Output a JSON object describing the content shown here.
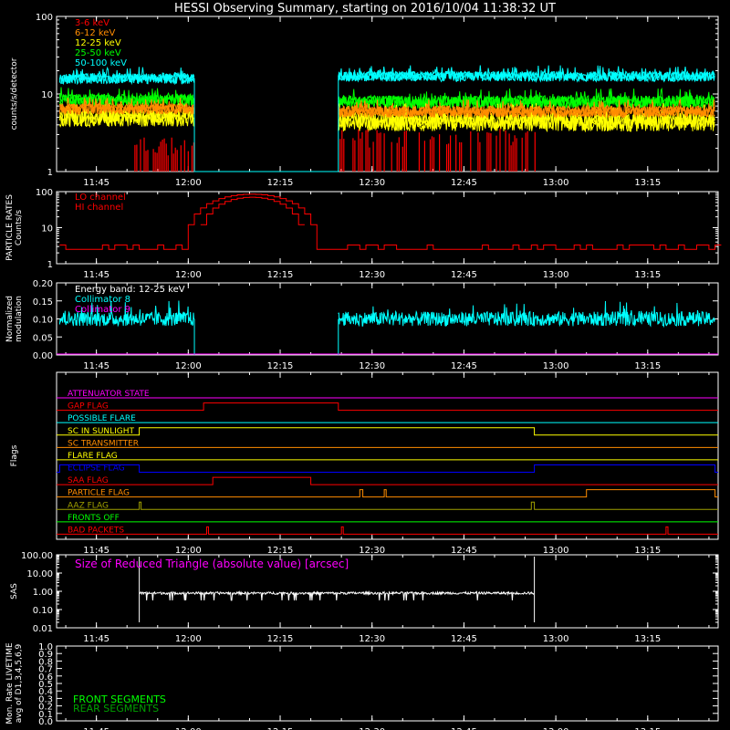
{
  "chart_data": {
    "type": "line",
    "title": "HESSI Observing Summary, starting on 2016/10/04 11:38:32 UT",
    "x_ticks": [
      "11:45",
      "12:00",
      "12:15",
      "12:30",
      "12:45",
      "13:00",
      "13:15"
    ],
    "x_ticks_minutes": [
      705,
      720,
      735,
      750,
      765,
      780,
      795
    ],
    "xlim_minutes": [
      698.5,
      806.5
    ],
    "colors": {
      "bg": "#000000",
      "axis": "#ffffff",
      "red": "#ff0000",
      "orange": "#ff8c00",
      "yellow": "#ffff00",
      "green": "#00ff00",
      "cyan": "#00ffff",
      "magenta": "#ff00ff",
      "blue": "#0000ff",
      "darkgreen": "#00a000"
    },
    "panels": [
      {
        "id": "counts",
        "ylabel": "counts/s/detector",
        "yscale": "log",
        "ylim": [
          1,
          100
        ],
        "y_ticks": [
          "1",
          "10",
          "100"
        ],
        "y_tick_values": [
          1,
          10,
          100
        ],
        "legend": [
          {
            "text": "3-6 keV",
            "color": "#ff0000"
          },
          {
            "text": "6-12 keV",
            "color": "#ff8c00"
          },
          {
            "text": "12-25 keV",
            "color": "#ffff00"
          },
          {
            "text": "25-50 keV",
            "color": "#00ff00"
          },
          {
            "text": "50-100 keV",
            "color": "#00ffff"
          }
        ],
        "data_gaps_minutes": [
          [
            721,
            744.5
          ]
        ],
        "series": [
          {
            "name": "50-100 keV",
            "color": "#00ffff",
            "segments": [
              {
                "x": [
                  699,
                  721
                ],
                "y": 16,
                "noise": 2.5
              },
              {
                "x": [
                  744.5,
                  806
                ],
                "y": 17,
                "noise": 2.5
              }
            ]
          },
          {
            "name": "25-50 keV",
            "color": "#00ff00",
            "segments": [
              {
                "x": [
                  699,
                  721
                ],
                "y": 8.5,
                "noise": 1.5
              },
              {
                "x": [
                  744.5,
                  806
                ],
                "y": 8,
                "noise": 1.5
              }
            ]
          },
          {
            "name": "12-25 keV",
            "color": "#ffff00",
            "segments": [
              {
                "x": [
                  699,
                  721
                ],
                "y": 5,
                "noise": 1.2
              },
              {
                "x": [
                  744.5,
                  806
                ],
                "y": 4.5,
                "noise": 1.2
              }
            ]
          },
          {
            "name": "6-12 keV",
            "color": "#ff8c00",
            "segments": [
              {
                "x": [
                  699,
                  721
                ],
                "y": 6.5,
                "noise": 1.0
              },
              {
                "x": [
                  744.5,
                  806
                ],
                "y": 6,
                "noise": 1.0
              }
            ]
          },
          {
            "name": "3-6 keV",
            "color": "#ff0000",
            "segments": [
              {
                "x": [
                  711,
                  721
                ],
                "y": 1.6,
                "noise": 0.6
              },
              {
                "x": [
                  744.5,
                  777
                ],
                "y": 2,
                "noise": 0.8
              }
            ]
          }
        ]
      },
      {
        "id": "particle",
        "ylabel": "PARTICLE RATES Counts/s",
        "yscale": "log",
        "ylim": [
          1,
          100
        ],
        "y_ticks": [
          "1",
          "10",
          "100"
        ],
        "y_tick_values": [
          1,
          10,
          100
        ],
        "legend": [
          {
            "text": "LO channel",
            "color": "#ff0000"
          },
          {
            "text": "HI channel",
            "color": "#ff0000"
          }
        ],
        "series": [
          {
            "name": "LO channel",
            "color": "#ff0000",
            "baseline": 2.5,
            "peak": {
              "center": 730,
              "height": 85,
              "half_width": 11
            }
          },
          {
            "name": "HI channel",
            "color": "#ff0000",
            "baseline": null,
            "peak": {
              "center": 730,
              "height": 70,
              "half_width": 9
            }
          }
        ]
      },
      {
        "id": "modulation",
        "ylabel": "Normalized modulation",
        "yscale": "linear",
        "ylim": [
          0,
          0.2
        ],
        "y_ticks": [
          "0.00",
          "0.05",
          "0.10",
          "0.15",
          "0.20"
        ],
        "y_tick_values": [
          0,
          0.05,
          0.1,
          0.15,
          0.2
        ],
        "legend_header": "Energy band: 12-25 keV",
        "legend": [
          {
            "text": "Collimator 8",
            "color": "#00ffff"
          },
          {
            "text": "Collimator 9",
            "color": "#ff00ff"
          }
        ],
        "series": [
          {
            "name": "Collimator 8",
            "color": "#00ffff",
            "segments": [
              {
                "x": [
                  699,
                  721
                ],
                "y": 0.1,
                "noise": 0.02
              },
              {
                "x": [
                  744.5,
                  806
                ],
                "y": 0.1,
                "noise": 0.02
              }
            ]
          },
          {
            "name": "Collimator 9",
            "color": "#ff00ff",
            "value": 0.0
          }
        ]
      },
      {
        "id": "flags",
        "ylabel": "Flags",
        "flags": [
          {
            "name": "ATTENUATOR STATE",
            "color": "#ff00ff",
            "steps": []
          },
          {
            "name": "GAP FLAG",
            "color": "#ff0000",
            "steps": [
              [
                722.5,
                744.5
              ]
            ]
          },
          {
            "name": "POSSIBLE FLARE",
            "color": "#00ffff",
            "steps": []
          },
          {
            "name": "SC IN SUNLIGHT",
            "color": "#ffff00",
            "steps": [
              [
                712,
                776.5
              ]
            ]
          },
          {
            "name": "SC TRANSMITTER",
            "color": "#ff8c00",
            "steps": []
          },
          {
            "name": "FLARE FLAG",
            "color": "#ffff00",
            "steps": []
          },
          {
            "name": "ECLIPSE FLAG",
            "color": "#0000ff",
            "steps": [
              [
                699,
                712
              ],
              [
                776.5,
                806
              ]
            ]
          },
          {
            "name": "SAA FLAG",
            "color": "#ff0000",
            "steps": [
              [
                724,
                740
              ]
            ]
          },
          {
            "name": "PARTICLE FLAG",
            "color": "#ff8c00",
            "steps": [
              [
                748,
                748.5
              ],
              [
                752,
                752.3
              ],
              [
                785,
                806
              ]
            ]
          },
          {
            "name": "AAZ FLAG",
            "color": "#a0a000",
            "steps": [
              [
                712,
                712.3
              ],
              [
                776,
                776.5
              ]
            ]
          },
          {
            "name": "FRONTS OFF",
            "color": "#00ff00",
            "steps": []
          },
          {
            "name": "BAD PACKETS",
            "color": "#ff0000",
            "steps": [
              [
                723,
                723.3
              ],
              [
                745,
                745.3
              ],
              [
                798,
                798.3
              ]
            ]
          }
        ]
      },
      {
        "id": "sas",
        "ylabel": "SAS",
        "yscale": "log",
        "ylim": [
          0.01,
          100
        ],
        "y_ticks": [
          "0.01",
          "0.10",
          "1.00",
          "10.00",
          "100.00"
        ],
        "y_tick_values": [
          0.01,
          0.1,
          1,
          10,
          100
        ],
        "legend": [
          {
            "text": "Size of Reduced Triangle (absolute value) [arcsec]",
            "color": "#ff00ff"
          }
        ],
        "series": [
          {
            "name": "Size of Reduced Triangle",
            "color": "#ffffff",
            "x": [
              712,
              776.5
            ],
            "y": 0.8
          }
        ]
      },
      {
        "id": "livetime",
        "ylabel": "Mon. Rate LIVETIME avg of D1,3,4,5,6,9",
        "yscale": "linear",
        "ylim": [
          0,
          1.0
        ],
        "y_ticks": [
          "0.0",
          "0.1",
          "0.2",
          "0.3",
          "0.4",
          "0.5",
          "0.6",
          "0.7",
          "0.8",
          "0.9",
          "1.0"
        ],
        "y_tick_values": [
          0,
          0.1,
          0.2,
          0.3,
          0.4,
          0.5,
          0.6,
          0.7,
          0.8,
          0.9,
          1.0
        ],
        "legend": [
          {
            "text": "FRONT SEGMENTS",
            "color": "#00ff00"
          },
          {
            "text": "REAR SEGMENTS",
            "color": "#00a000"
          }
        ]
      }
    ]
  }
}
